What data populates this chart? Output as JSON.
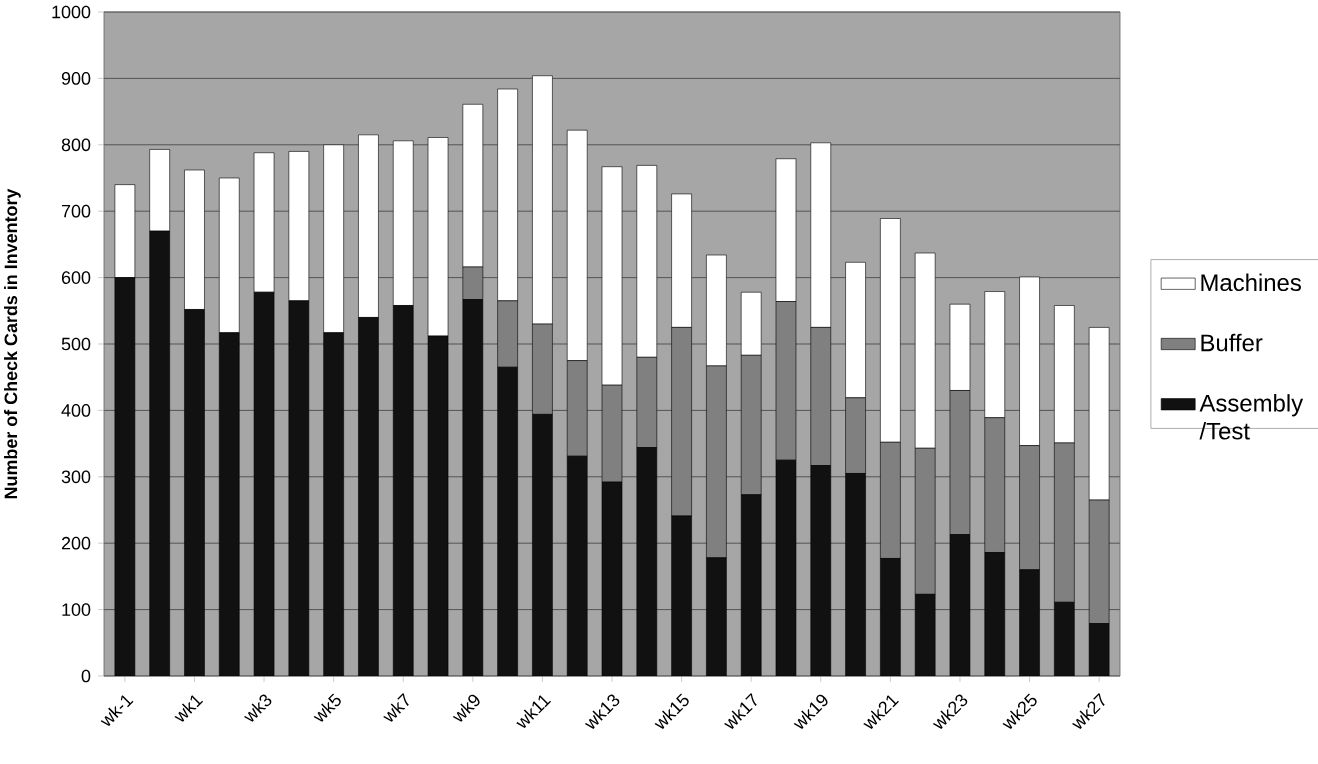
{
  "chart_data": {
    "type": "bar",
    "stacked": true,
    "ylabel": "Number of Check Cards in Inventory",
    "categories": [
      "wk-1",
      null,
      "wk1",
      null,
      "wk3",
      null,
      "wk5",
      null,
      "wk7",
      null,
      "wk9",
      null,
      "wk11",
      null,
      "wk13",
      null,
      "wk15",
      null,
      "wk17",
      null,
      "wk19",
      null,
      "wk21",
      null,
      "wk23",
      null,
      "wk25",
      null,
      "wk27"
    ],
    "series": [
      {
        "name": "Assembly /Test",
        "color": "#111111",
        "values": [
          600,
          670,
          552,
          517,
          578,
          565,
          517,
          540,
          558,
          512,
          567,
          465,
          394,
          331,
          292,
          344,
          241,
          178,
          273,
          325,
          317,
          305,
          177,
          123,
          213,
          186,
          160,
          111,
          79
        ]
      },
      {
        "name": "Buffer",
        "color": "#808080",
        "values": [
          0,
          0,
          0,
          0,
          0,
          0,
          0,
          0,
          0,
          0,
          49,
          100,
          136,
          144,
          146,
          136,
          284,
          289,
          210,
          239,
          208,
          114,
          175,
          220,
          217,
          203,
          187,
          240,
          186
        ]
      },
      {
        "name": "Machines",
        "color": "#ffffff",
        "values": [
          140,
          123,
          210,
          233,
          210,
          225,
          283,
          275,
          248,
          299,
          245,
          319,
          374,
          347,
          329,
          289,
          201,
          167,
          95,
          215,
          278,
          204,
          337,
          294,
          130,
          190,
          254,
          207,
          260
        ]
      }
    ],
    "ylim": [
      0,
      1000
    ],
    "yticks": [
      0,
      100,
      200,
      300,
      400,
      500,
      600,
      700,
      800,
      900,
      1000
    ],
    "grid": "y",
    "legend": "right"
  }
}
